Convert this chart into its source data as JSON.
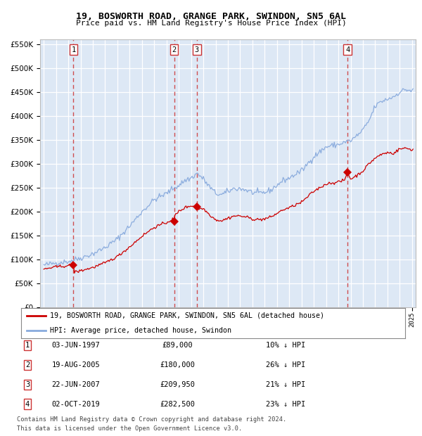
{
  "title": "19, BOSWORTH ROAD, GRANGE PARK, SWINDON, SN5 6AL",
  "subtitle": "Price paid vs. HM Land Registry's House Price Index (HPI)",
  "transactions": [
    {
      "num": 1,
      "date_label": "03-JUN-1997",
      "year": 1997.42,
      "price": 89000,
      "hpi_pct": "10% ↓ HPI"
    },
    {
      "num": 2,
      "date_label": "19-AUG-2005",
      "year": 2005.63,
      "price": 180000,
      "hpi_pct": "26% ↓ HPI"
    },
    {
      "num": 3,
      "date_label": "22-JUN-2007",
      "year": 2007.47,
      "price": 209950,
      "hpi_pct": "21% ↓ HPI"
    },
    {
      "num": 4,
      "date_label": "02-OCT-2019",
      "year": 2019.75,
      "price": 282500,
      "hpi_pct": "23% ↓ HPI"
    }
  ],
  "ylim": [
    0,
    560000
  ],
  "yticks": [
    0,
    50000,
    100000,
    150000,
    200000,
    250000,
    300000,
    350000,
    400000,
    450000,
    500000,
    550000
  ],
  "xlim_start": 1994.7,
  "xlim_end": 2025.3,
  "legend_line1": "19, BOSWORTH ROAD, GRANGE PARK, SWINDON, SN5 6AL (detached house)",
  "legend_line2": "HPI: Average price, detached house, Swindon",
  "footer1": "Contains HM Land Registry data © Crown copyright and database right 2024.",
  "footer2": "This data is licensed under the Open Government Licence v3.0.",
  "property_color": "#cc0000",
  "hpi_color": "#88aadd",
  "background_color": "#dde8f5",
  "plot_bg": "#dde8f5"
}
